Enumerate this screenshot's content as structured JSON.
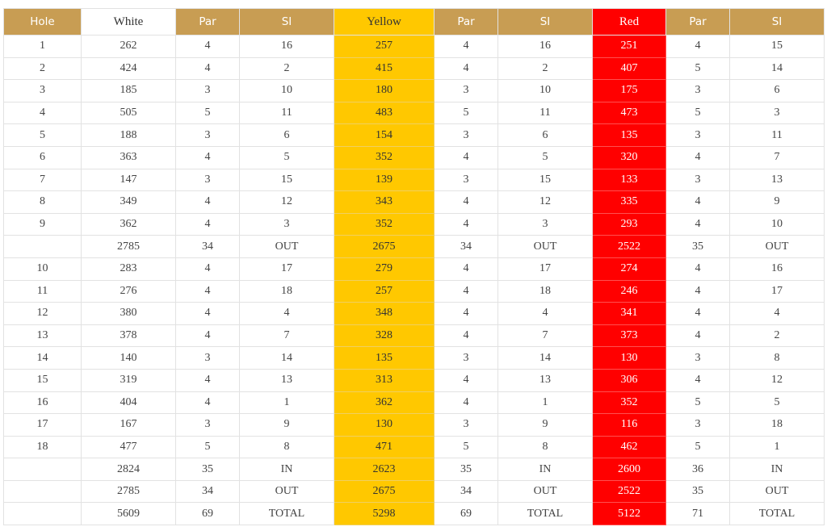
{
  "table": {
    "header": [
      "Hole",
      "White",
      "Par",
      "SI",
      "Yellow",
      "Par",
      "SI",
      "Red",
      "Par",
      "SI"
    ],
    "rows": [
      [
        "1",
        "262",
        "4",
        "16",
        "257",
        "4",
        "16",
        "251",
        "4",
        "15"
      ],
      [
        "2",
        "424",
        "4",
        "2",
        "415",
        "4",
        "2",
        "407",
        "5",
        "14"
      ],
      [
        "3",
        "185",
        "3",
        "10",
        "180",
        "3",
        "10",
        "175",
        "3",
        "6"
      ],
      [
        "4",
        "505",
        "5",
        "11",
        "483",
        "5",
        "11",
        "473",
        "5",
        "3"
      ],
      [
        "5",
        "188",
        "3",
        "6",
        "154",
        "3",
        "6",
        "135",
        "3",
        "11"
      ],
      [
        "6",
        "363",
        "4",
        "5",
        "352",
        "4",
        "5",
        "320",
        "4",
        "7"
      ],
      [
        "7",
        "147",
        "3",
        "15",
        "139",
        "3",
        "15",
        "133",
        "3",
        "13"
      ],
      [
        "8",
        "349",
        "4",
        "12",
        "343",
        "4",
        "12",
        "335",
        "4",
        "9"
      ],
      [
        "9",
        "362",
        "4",
        "3",
        "352",
        "4",
        "3",
        "293",
        "4",
        "10"
      ],
      [
        null,
        "2785",
        "34",
        "OUT",
        "2675",
        "34",
        "OUT",
        "2522",
        "35",
        "OUT"
      ],
      [
        "10",
        "283",
        "4",
        "17",
        "279",
        "4",
        "17",
        "274",
        "4",
        "16"
      ],
      [
        "11",
        "276",
        "4",
        "18",
        "257",
        "4",
        "18",
        "246",
        "4",
        "17"
      ],
      [
        "12",
        "380",
        "4",
        "4",
        "348",
        "4",
        "4",
        "341",
        "4",
        "4"
      ],
      [
        "13",
        "378",
        "4",
        "7",
        "328",
        "4",
        "7",
        "373",
        "4",
        "2"
      ],
      [
        "14",
        "140",
        "3",
        "14",
        "135",
        "3",
        "14",
        "130",
        "3",
        "8"
      ],
      [
        "15",
        "319",
        "4",
        "13",
        "313",
        "4",
        "13",
        "306",
        "4",
        "12"
      ],
      [
        "16",
        "404",
        "4",
        "1",
        "362",
        "4",
        "1",
        "352",
        "5",
        "5"
      ],
      [
        "17",
        "167",
        "3",
        "9",
        "130",
        "3",
        "9",
        "116",
        "3",
        "18"
      ],
      [
        "18",
        "477",
        "5",
        "8",
        "471",
        "5",
        "8",
        "462",
        "5",
        "1"
      ],
      [
        null,
        "2824",
        "35",
        "IN",
        "2623",
        "35",
        "IN",
        "2600",
        "36",
        "IN"
      ],
      [
        null,
        "2785",
        "34",
        "OUT",
        "2675",
        "34",
        "OUT",
        "2522",
        "35",
        "OUT"
      ],
      [
        null,
        "5609",
        "69",
        "TOTAL",
        "5298",
        "69",
        "TOTAL",
        "5122",
        "71",
        "TOTAL"
      ]
    ]
  }
}
